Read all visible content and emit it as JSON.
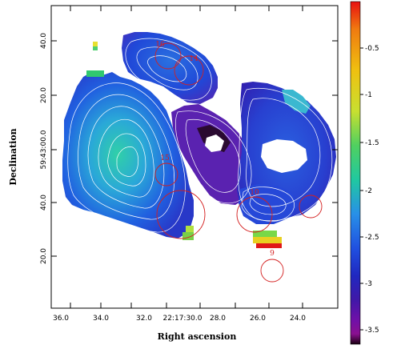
{
  "axes": {
    "xlabel": "Right ascension",
    "ylabel": "Declination",
    "xticks": [
      "36.0",
      "34.0",
      "32.0",
      "22:17:30.0",
      "28.0",
      "26.0",
      "24.0"
    ],
    "yticks": [
      "40.0",
      "20.0",
      "59:43:00.0",
      "40.0",
      "20.0"
    ]
  },
  "colorbar": {
    "ticks": [
      "-0.5",
      "-1",
      "-1.5",
      "-2",
      "-2.5",
      "-3",
      "-3.5"
    ],
    "colors": [
      "#e81010",
      "#f07a10",
      "#f0c010",
      "#c8e030",
      "#50d060",
      "#20c8a0",
      "#2890e8",
      "#2050e0",
      "#2028c0",
      "#4018a8",
      "#7010a8",
      "#8a1090",
      "#1a0010"
    ]
  },
  "regions": [
    {
      "label": "9"
    },
    {
      "label": "10"
    },
    {
      "label": "14"
    },
    {
      "label": "15"
    },
    {
      "label": "16"
    }
  ],
  "colors": {
    "frame": "#000000",
    "region": "#d42020",
    "contour": "#ffffff"
  }
}
